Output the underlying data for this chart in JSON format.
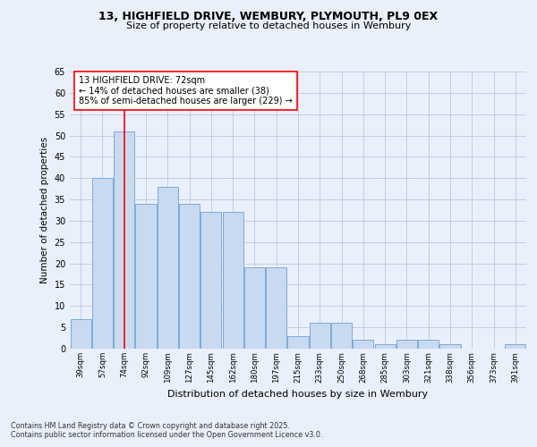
{
  "title1": "13, HIGHFIELD DRIVE, WEMBURY, PLYMOUTH, PL9 0EX",
  "title2": "Size of property relative to detached houses in Wembury",
  "xlabel": "Distribution of detached houses by size in Wembury",
  "ylabel": "Number of detached properties",
  "categories": [
    "39sqm",
    "57sqm",
    "74sqm",
    "92sqm",
    "109sqm",
    "127sqm",
    "145sqm",
    "162sqm",
    "180sqm",
    "197sqm",
    "215sqm",
    "233sqm",
    "250sqm",
    "268sqm",
    "285sqm",
    "303sqm",
    "321sqm",
    "338sqm",
    "356sqm",
    "373sqm",
    "391sqm"
  ],
  "values": [
    7,
    40,
    51,
    34,
    38,
    34,
    32,
    32,
    19,
    19,
    3,
    6,
    6,
    2,
    1,
    2,
    2,
    1,
    0,
    0,
    1
  ],
  "bar_color": "#c9d9f0",
  "bar_edge_color": "#7aabdb",
  "red_line_x": 2,
  "annotation_title": "13 HIGHFIELD DRIVE: 72sqm",
  "annotation_line1": "← 14% of detached houses are smaller (38)",
  "annotation_line2": "85% of semi-detached houses are larger (229) →",
  "footer1": "Contains HM Land Registry data © Crown copyright and database right 2025.",
  "footer2": "Contains public sector information licensed under the Open Government Licence v3.0.",
  "bg_color": "#eaf0fb",
  "plot_bg_color": "#eaf0fb",
  "ylim": [
    0,
    65
  ],
  "yticks": [
    0,
    5,
    10,
    15,
    20,
    25,
    30,
    35,
    40,
    45,
    50,
    55,
    60,
    65
  ]
}
